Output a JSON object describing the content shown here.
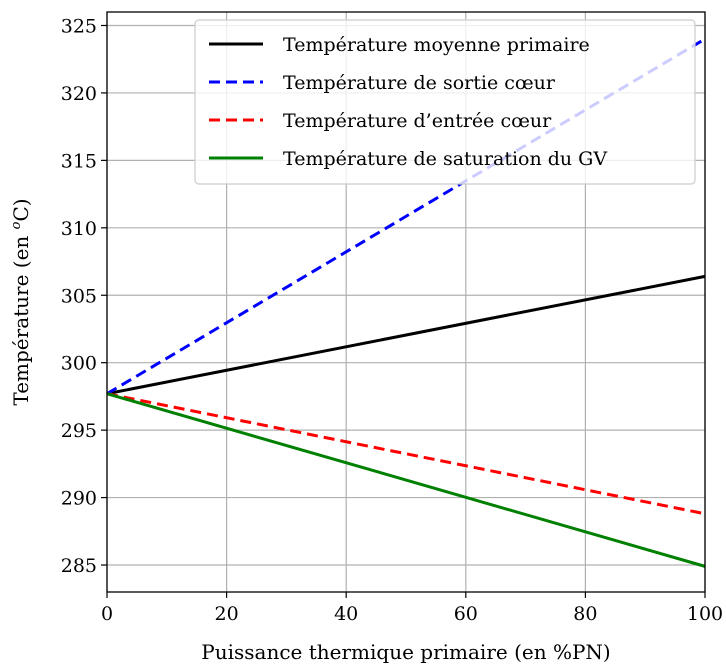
{
  "chart_data": {
    "type": "line",
    "title": "",
    "xlabel": "Puissance thermique primaire (en %PN)",
    "ylabel": "Température (en °C)",
    "ylabel_prefix": "Température (en ",
    "ylabel_sup": "o",
    "ylabel_suffix": "C)",
    "xlim": [
      0,
      100
    ],
    "ylim": [
      283,
      326
    ],
    "xticks": [
      0,
      20,
      40,
      60,
      80,
      100
    ],
    "yticks": [
      285,
      290,
      295,
      300,
      305,
      310,
      315,
      320,
      325
    ],
    "grid": true,
    "legend_position": "top-right",
    "series": [
      {
        "name": "Température moyenne primaire",
        "color": "#000000",
        "dash": "solid",
        "x": [
          0,
          100
        ],
        "y": [
          297.7,
          306.4
        ]
      },
      {
        "name": "Température de sortie cœur",
        "color": "#0000ff",
        "dash": "dashed",
        "x": [
          0,
          100
        ],
        "y": [
          297.7,
          324.0
        ]
      },
      {
        "name": "Température d’entrée cœur",
        "color": "#ff0000",
        "dash": "dashed",
        "x": [
          0,
          100
        ],
        "y": [
          297.7,
          288.8
        ]
      },
      {
        "name": "Température de saturation du GV",
        "color": "#008000",
        "dash": "solid",
        "x": [
          0,
          100
        ],
        "y": [
          297.7,
          284.9
        ]
      }
    ]
  }
}
